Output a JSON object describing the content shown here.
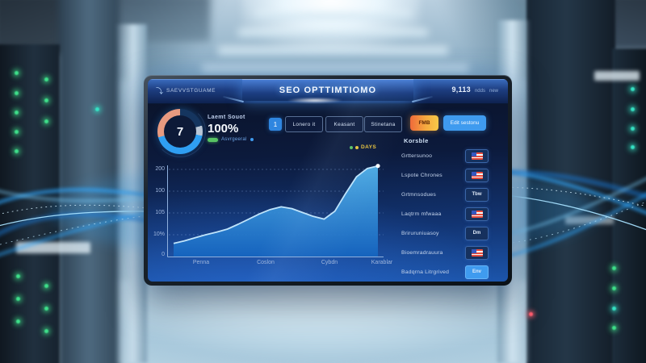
{
  "monitor": {
    "brand": {
      "label": "SAEVVSTGUAME"
    },
    "header": {
      "title": "SEO OPTTIMTIOMO",
      "stats_value": "9,113",
      "stats_unit": "ndds",
      "stats_extra": "new"
    },
    "overview": {
      "gauge_value": "7",
      "label": "Laemt Souot",
      "percent": "100%",
      "trend_label": "Asvrgeeral"
    },
    "toolbar": {
      "page_index": "1",
      "tabs": [
        "Lonero it",
        "Keasant",
        "Stinetana"
      ],
      "filter_label": "FMB",
      "primary_label": "Edit sestonu"
    },
    "sidebar": {
      "title": "Korsble",
      "rows": [
        {
          "label": "Grttersunoo",
          "action_icon": "flag-icon",
          "action_label": ""
        },
        {
          "label": "Lspote Chrones",
          "action_icon": "flag-icon",
          "action_label": ""
        },
        {
          "label": "Grtmnsodues",
          "action_icon": "",
          "action_label": "Tbw"
        },
        {
          "label": "Laqtrm mfwaaa",
          "action_icon": "flag-icon",
          "action_label": ""
        },
        {
          "label": "Briruruniuasoy",
          "action_icon": "",
          "action_label": "Dm"
        },
        {
          "label": "Bioemradrauura",
          "action_icon": "flag-icon",
          "action_label": ""
        },
        {
          "label": "Badqrna Litrgrived",
          "action_icon": "",
          "action_label": "Env"
        }
      ]
    }
  },
  "chart_data": {
    "type": "area",
    "title": "",
    "legend": [
      {
        "name": "DAYS",
        "color": "#e8c33c"
      }
    ],
    "x_ticks": [
      "Penna",
      "Coslon",
      "Cybdn",
      "Karablar"
    ],
    "y_ticks": [
      "200",
      "100",
      "105",
      "10%",
      "0"
    ],
    "ylim": [
      0,
      220
    ],
    "grid": true,
    "legend_position": "top-right",
    "series": [
      {
        "name": "DAYS",
        "values": [
          30,
          36,
          43,
          50,
          56,
          63,
          74,
          86,
          98,
          108,
          114,
          110,
          101,
          92,
          86,
          104,
          145,
          183,
          202,
          208
        ]
      }
    ]
  },
  "colors": {
    "accent_blue": "#3f9bef",
    "accent_orange": "#f6a93f",
    "panel_navy": "#0c1a3c",
    "panel_bottom_blue": "#1c55ab",
    "chart_fill_top": "#54b7f0",
    "chart_fill_bottom": "#1565c0",
    "gauge_salmon": "#e89a80",
    "gauge_blue": "#2f9ff2",
    "led_green": "#3ee08a",
    "led_teal": "#35e2c4",
    "wave_blue": "#2ea8ff"
  }
}
